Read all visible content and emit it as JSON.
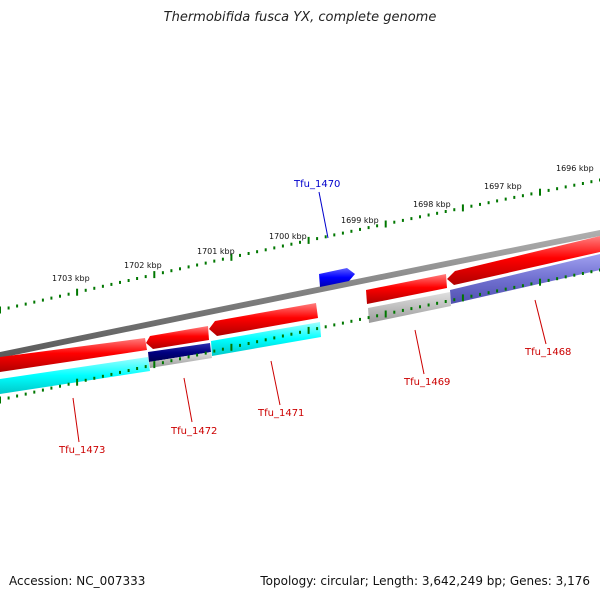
{
  "title": "Thermobifida fusca YX, complete genome",
  "accession": "Accession: NC_007333",
  "summary": "Topology: circular; Length: 3,642,249 bp; Genes: 3,176",
  "kbp_labels": [
    "1696 kbp",
    "1697 kbp",
    "1698 kbp",
    "1699 kbp",
    "1700 kbp",
    "1701 kbp",
    "1702 kbp",
    "1703 kbp"
  ],
  "genes": [
    {
      "name": "Tfu_1470",
      "color": "#0000cc"
    },
    {
      "name": "Tfu_1468",
      "color": "#cc0000"
    },
    {
      "name": "Tfu_1469",
      "color": "#cc0000"
    },
    {
      "name": "Tfu_1471",
      "color": "#cc0000"
    },
    {
      "name": "Tfu_1472",
      "color": "#cc0000"
    },
    {
      "name": "Tfu_1473",
      "color": "#cc0000"
    }
  ],
  "colors": {
    "backbone": "#808080",
    "cds_red": "#ff0000",
    "feature_cyan": "#00ffff",
    "feature_purple": "#7070d0",
    "feature_navy": "#000080",
    "feature_grey": "#bdbdbd",
    "gene_blue": "#0000ff",
    "ticks": "#007700"
  }
}
